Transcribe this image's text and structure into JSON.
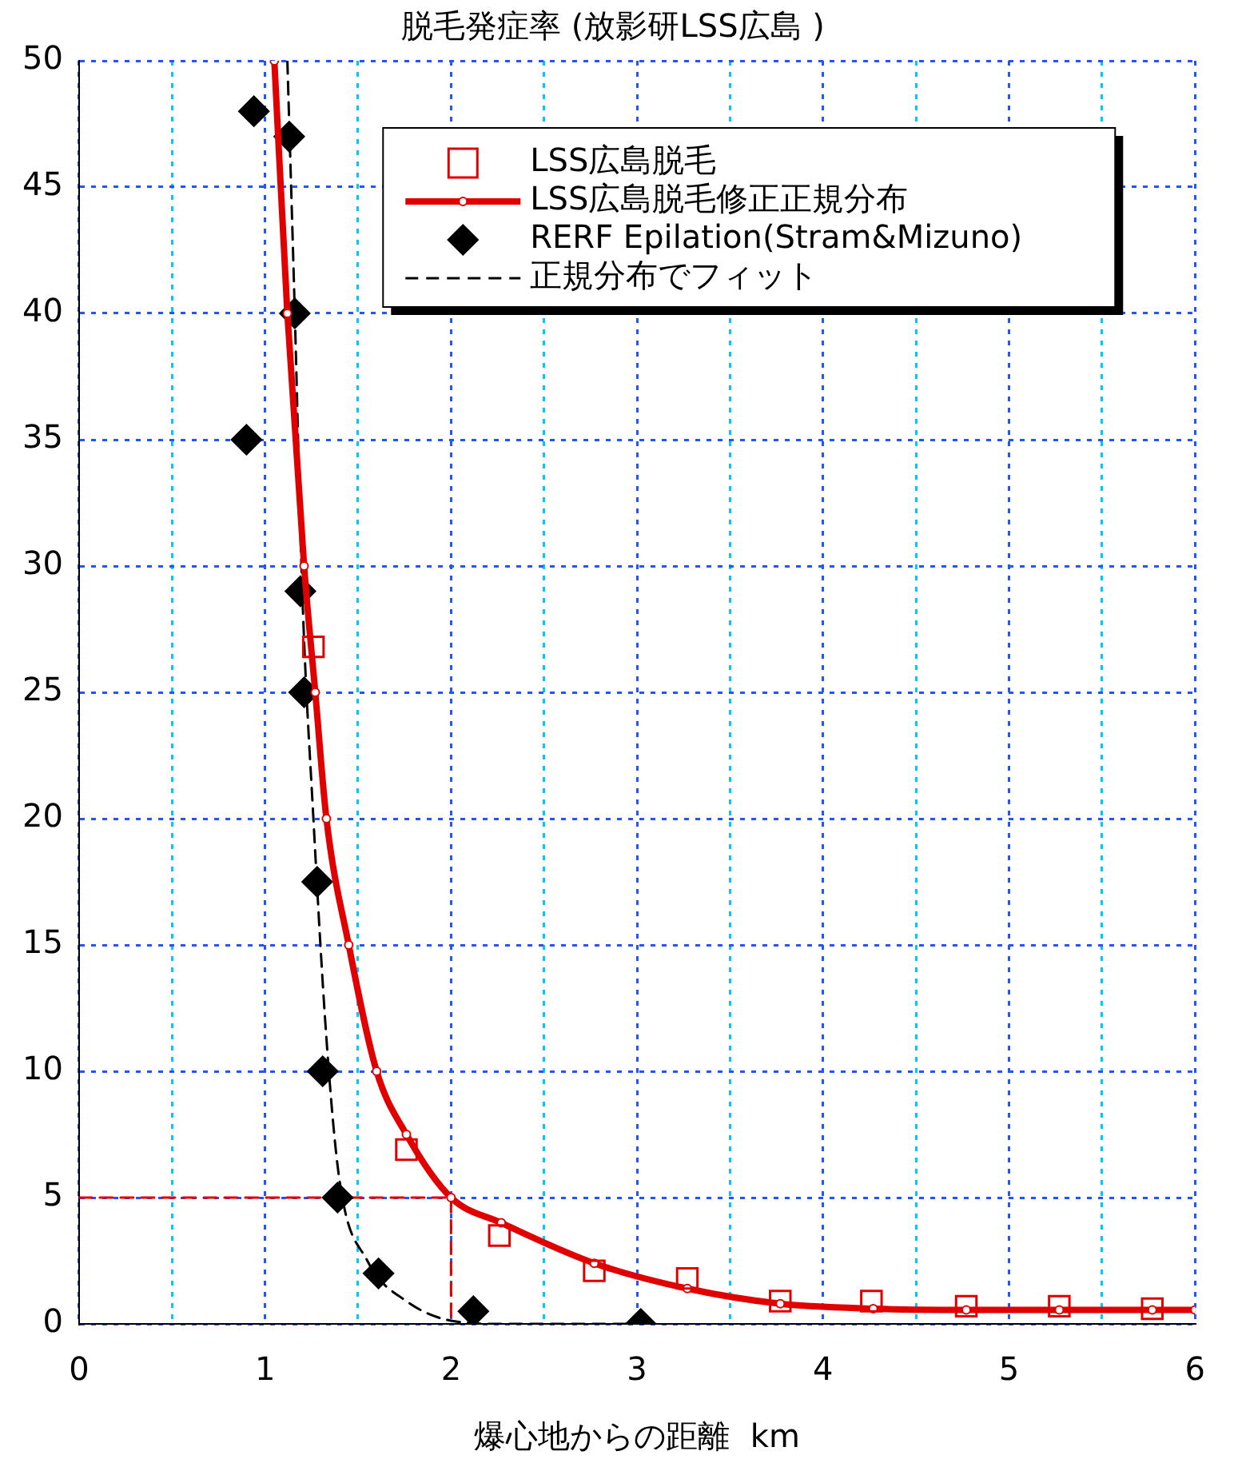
{
  "chart_data": {
    "type": "line",
    "title": "脱毛発症率 (放影研LSS広島 )",
    "xlabel": "爆心地からの距離  km",
    "xlim": [
      0,
      6
    ],
    "xticks": [
      0,
      {
        "value": 0.5,
        "label": null
      },
      1,
      {
        "value": 1.5,
        "label": null
      },
      2,
      {
        "value": 2.5,
        "label": null
      },
      3,
      {
        "value": 3.5,
        "label": null
      },
      4,
      {
        "value": 4.5,
        "label": null
      },
      5,
      {
        "value": 5.5,
        "label": null
      },
      6
    ],
    "ylim": [
      0,
      50
    ],
    "yticks": [
      0,
      5,
      10,
      15,
      20,
      25,
      30,
      35,
      40,
      45,
      50
    ],
    "grid": true,
    "legend": "top right",
    "series": [
      {
        "name": "LSS広島脱毛",
        "type": "scatter",
        "marker": "square",
        "color": "#e00000",
        "x": [
          1.26,
          1.76,
          2.26,
          2.77,
          3.27,
          3.77,
          4.26,
          4.77,
          5.27,
          5.77
        ],
        "values": [
          26.8,
          6.9,
          3.5,
          2.1,
          1.8,
          0.9,
          0.9,
          0.7,
          0.7,
          0.6
        ]
      },
      {
        "name": "LSS広島脱毛修正正規分布",
        "marker": "circle",
        "line_style": "solid",
        "color": "#e00000",
        "x": [
          1.05,
          1.12,
          1.21,
          1.27,
          1.33,
          1.45,
          1.6,
          1.76,
          2.0,
          2.27,
          2.77,
          3.27,
          3.77,
          4.27,
          4.77,
          5.27,
          5.77,
          6.0
        ],
        "values": [
          50,
          40,
          30,
          25,
          20,
          15,
          10,
          7.5,
          5.0,
          4.0,
          2.4,
          1.4,
          0.8,
          0.6,
          0.55,
          0.55,
          0.55,
          0.55
        ]
      },
      {
        "name": "RERF Epilation(Stram&Mizuno)",
        "type": "scatter",
        "marker": "diamond",
        "color": "#000000",
        "x": [
          0.94,
          1.13,
          1.16,
          0.9,
          1.19,
          1.21,
          1.28,
          1.31,
          1.39,
          1.61,
          2.12,
          3.02
        ],
        "values": [
          48,
          47,
          40,
          35,
          29,
          25,
          17.5,
          10,
          5,
          2,
          0.5,
          0
        ]
      },
      {
        "name": "正規分布でフィット",
        "marker": "none",
        "line_style": "dashed",
        "color": "#000000",
        "x": [
          1.12,
          1.16,
          1.2,
          1.26,
          1.33,
          1.4,
          1.55,
          1.76,
          2.02,
          2.28,
          2.62,
          3.02
        ],
        "values": [
          50,
          40,
          29,
          20,
          11.3,
          5.7,
          2.5,
          0.9,
          0.1,
          0,
          0,
          0
        ]
      },
      {
        "marker": "none",
        "line_style": "dashed",
        "color": "#e00000",
        "x": [
          0,
          2,
          2
        ],
        "values": [
          5,
          5,
          0
        ]
      }
    ]
  }
}
